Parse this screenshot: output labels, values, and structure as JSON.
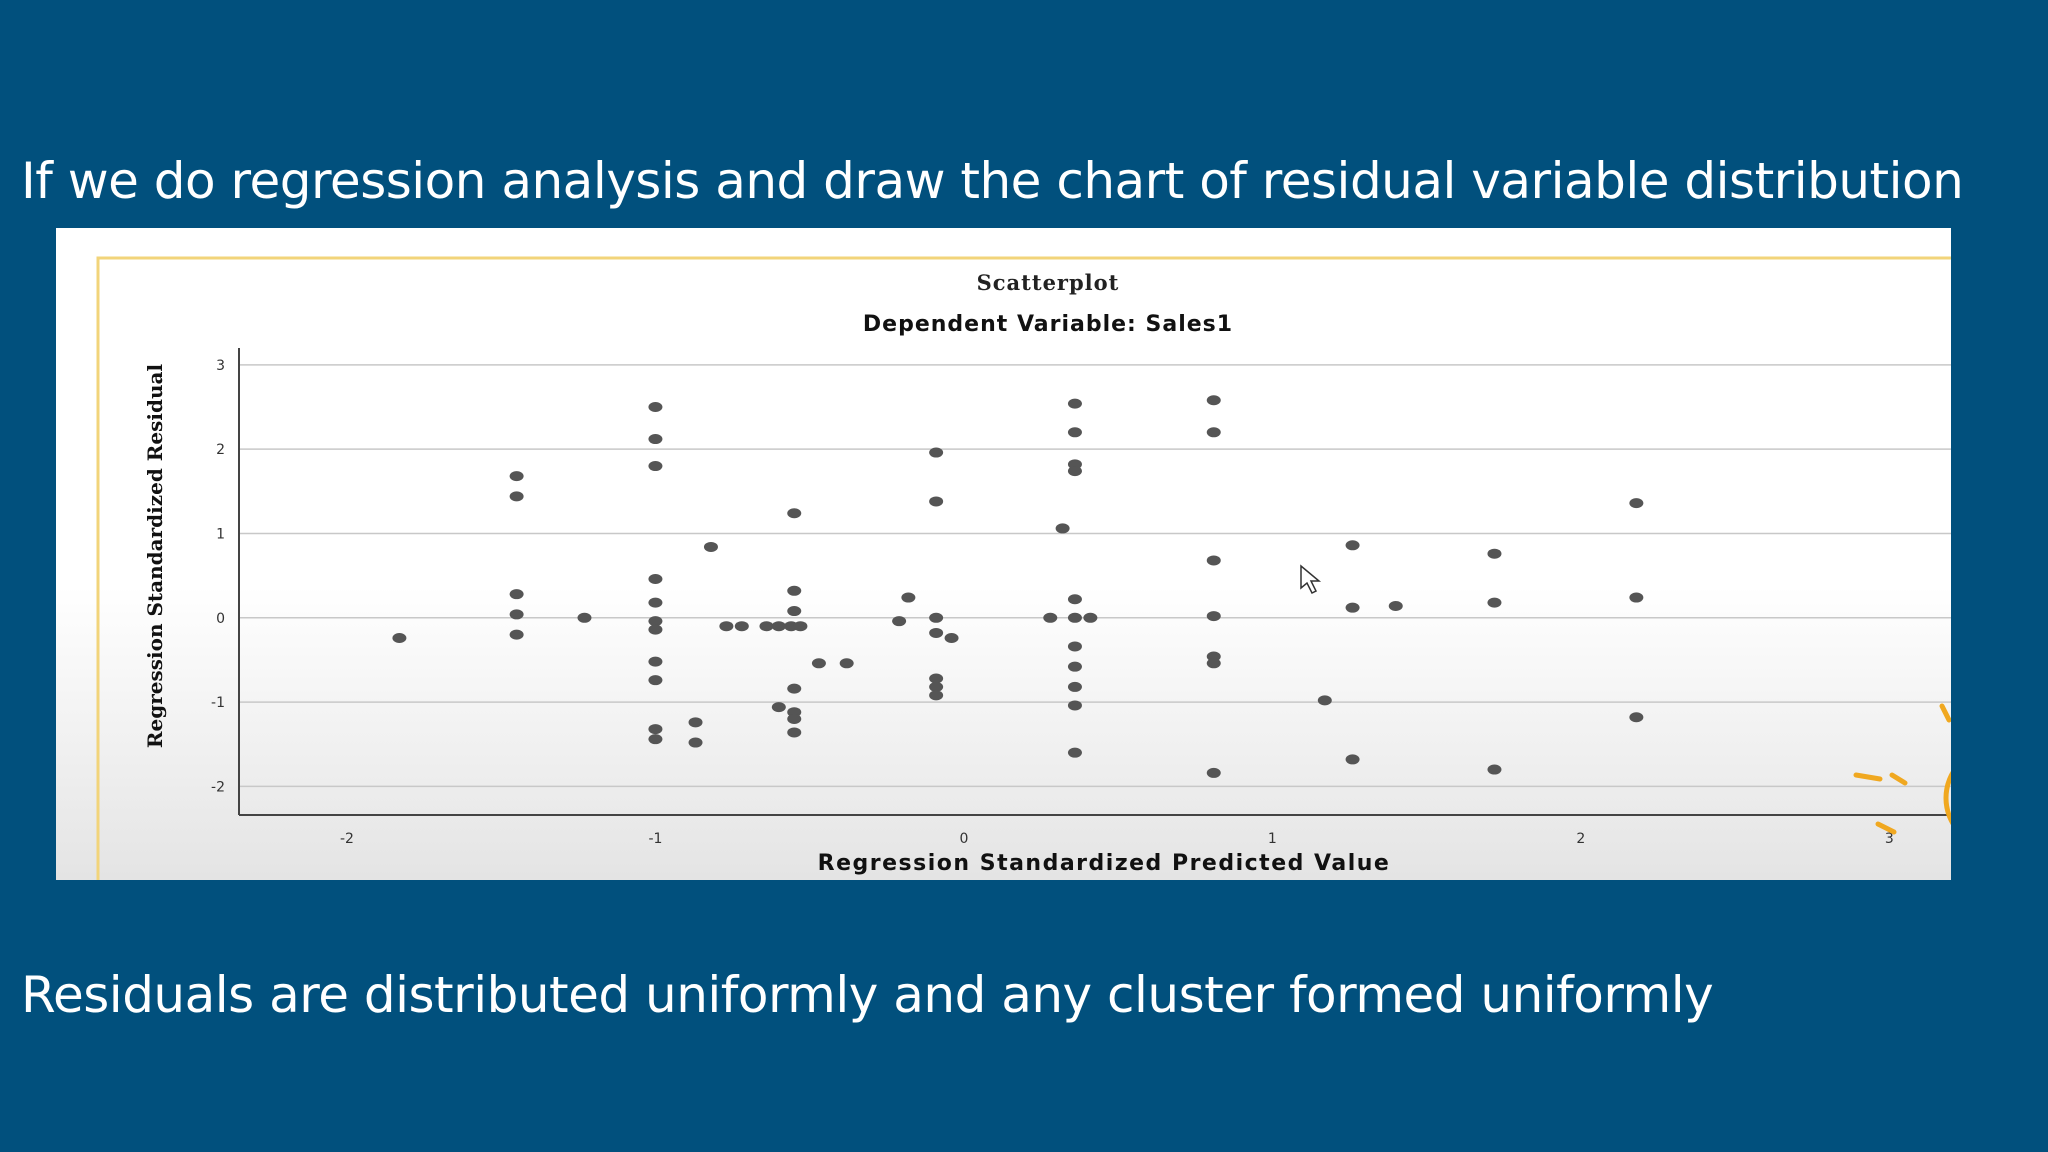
{
  "slide": {
    "heading": "If we do regression analysis and draw the chart of residual variable distribution",
    "caption": "Residuals are distributed uniformly and any cluster formed uniformly"
  },
  "colors": {
    "background": "#01507d",
    "text": "#ffffff",
    "point": "#555555",
    "grid": "#c8c8c8",
    "frame_accent": "#f2d47a",
    "sun": "#f0a820"
  },
  "chart_data": {
    "type": "scatter",
    "title": "Scatterplot",
    "subtitle": "Dependent Variable: Sales1",
    "xlabel": "Regression Standardized Predicted Value",
    "ylabel": "Regression Standardized Residual",
    "xlim": [
      -2.35,
      3.2
    ],
    "ylim": [
      -2.28,
      3.2
    ],
    "xticks": [
      -2,
      -1,
      0,
      1,
      2,
      3
    ],
    "yticks": [
      -2,
      -1,
      0,
      1,
      2,
      3
    ],
    "xtick_labels": [
      "-2",
      "-1",
      "0",
      "1",
      "2",
      "3"
    ],
    "ytick_labels": [
      "-2",
      "-1",
      "0",
      "1",
      "2",
      "3"
    ],
    "grid": true,
    "grid_axis": "y",
    "points": [
      [
        -1.83,
        -0.24
      ],
      [
        -1.45,
        1.68
      ],
      [
        -1.45,
        1.44
      ],
      [
        -1.45,
        0.28
      ],
      [
        -1.45,
        0.04
      ],
      [
        -1.45,
        -0.2
      ],
      [
        -1.23,
        0.0
      ],
      [
        -1.0,
        2.5
      ],
      [
        -1.0,
        2.12
      ],
      [
        -1.0,
        1.8
      ],
      [
        -1.0,
        0.46
      ],
      [
        -1.0,
        0.18
      ],
      [
        -1.0,
        -0.04
      ],
      [
        -1.0,
        -0.14
      ],
      [
        -1.0,
        -0.52
      ],
      [
        -1.0,
        -0.74
      ],
      [
        -1.0,
        -1.32
      ],
      [
        -1.0,
        -1.44
      ],
      [
        -0.87,
        -1.24
      ],
      [
        -0.87,
        -1.48
      ],
      [
        -0.82,
        0.84
      ],
      [
        -0.77,
        -0.1
      ],
      [
        -0.72,
        -0.1
      ],
      [
        -0.64,
        -0.1
      ],
      [
        -0.6,
        -0.1
      ],
      [
        -0.56,
        -0.1
      ],
      [
        -0.53,
        -0.1
      ],
      [
        -0.6,
        -1.06
      ],
      [
        -0.55,
        1.24
      ],
      [
        -0.55,
        0.32
      ],
      [
        -0.55,
        0.08
      ],
      [
        -0.55,
        -0.84
      ],
      [
        -0.55,
        -1.12
      ],
      [
        -0.55,
        -1.2
      ],
      [
        -0.55,
        -1.36
      ],
      [
        -0.47,
        -0.54
      ],
      [
        -0.38,
        -0.54
      ],
      [
        -0.18,
        0.24
      ],
      [
        -0.21,
        -0.04
      ],
      [
        -0.09,
        1.96
      ],
      [
        -0.09,
        1.38
      ],
      [
        -0.09,
        0.0
      ],
      [
        -0.09,
        -0.18
      ],
      [
        -0.04,
        -0.24
      ],
      [
        -0.09,
        -0.72
      ],
      [
        -0.09,
        -0.82
      ],
      [
        -0.09,
        -0.92
      ],
      [
        0.28,
        0.0
      ],
      [
        0.32,
        1.06
      ],
      [
        0.36,
        2.54
      ],
      [
        0.36,
        2.2
      ],
      [
        0.36,
        1.82
      ],
      [
        0.36,
        1.74
      ],
      [
        0.36,
        0.22
      ],
      [
        0.36,
        0.0
      ],
      [
        0.41,
        0.0
      ],
      [
        0.36,
        -0.34
      ],
      [
        0.36,
        -0.58
      ],
      [
        0.36,
        -0.82
      ],
      [
        0.36,
        -1.04
      ],
      [
        0.36,
        -1.6
      ],
      [
        0.81,
        2.58
      ],
      [
        0.81,
        2.2
      ],
      [
        0.81,
        0.68
      ],
      [
        0.81,
        0.02
      ],
      [
        0.81,
        -0.46
      ],
      [
        0.81,
        -0.54
      ],
      [
        0.81,
        -1.84
      ],
      [
        1.17,
        -0.98
      ],
      [
        1.26,
        0.86
      ],
      [
        1.26,
        0.12
      ],
      [
        1.26,
        -1.68
      ],
      [
        1.4,
        0.14
      ],
      [
        1.72,
        0.76
      ],
      [
        1.72,
        0.18
      ],
      [
        1.72,
        -1.8
      ],
      [
        2.18,
        1.36
      ],
      [
        2.18,
        0.24
      ],
      [
        2.18,
        -1.18
      ]
    ]
  }
}
